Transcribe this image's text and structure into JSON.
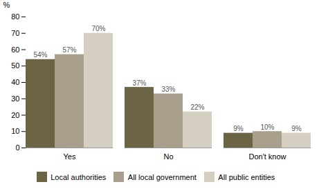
{
  "chart_data": {
    "type": "bar",
    "categories": [
      "Yes",
      "No",
      "Don't know"
    ],
    "series": [
      {
        "name": "Local authorities",
        "color": "#6b6445",
        "values": [
          54,
          37,
          9
        ],
        "value_labels": [
          "54%",
          "37%",
          "9%"
        ]
      },
      {
        "name": "All local government",
        "color": "#a89f8c",
        "values": [
          57,
          33,
          10
        ],
        "value_labels": [
          "57%",
          "33%",
          "10%"
        ]
      },
      {
        "name": "All public entities",
        "color": "#d4cfc0",
        "values": [
          70,
          22,
          9
        ],
        "value_labels": [
          "70%",
          "22%",
          "9%"
        ]
      }
    ],
    "ylabel": "%",
    "ylim": [
      0,
      80
    ],
    "yticks": [
      0,
      10,
      20,
      30,
      40,
      50,
      60,
      70,
      80
    ],
    "grid": false,
    "data_labels": true,
    "legend": "bottom"
  }
}
